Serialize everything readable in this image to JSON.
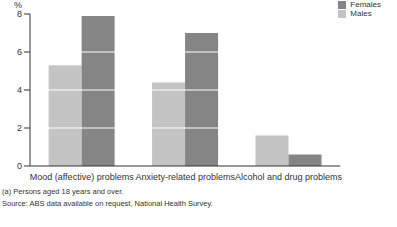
{
  "chart_data": {
    "type": "bar",
    "ylabel": "%",
    "categories": [
      "Mood (affective) problems",
      "Anxiety-related problems",
      "Alcohol and drug problems"
    ],
    "series": [
      {
        "name": "Males",
        "color": "#c4c4c4",
        "values": [
          5.3,
          4.4,
          1.6
        ]
      },
      {
        "name": "Females",
        "color": "#858585",
        "values": [
          7.9,
          7.0,
          0.6
        ]
      }
    ],
    "ylim": [
      0,
      8
    ],
    "yticks": [
      0,
      2,
      4,
      6,
      8
    ],
    "grid": true,
    "legend": "top-right",
    "annotations": [
      "(a) Persons aged 18 years and over.",
      "Source: ABS data available on request, National Health Survey."
    ]
  }
}
